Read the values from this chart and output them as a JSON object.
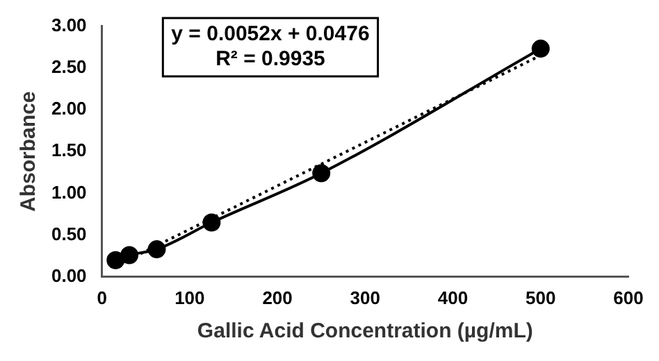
{
  "chart_data": {
    "type": "scatter",
    "xlabel": "Gallic Acid Concentration (µg/mL)",
    "ylabel": "Absorbance",
    "xlim": [
      0,
      600
    ],
    "xticks": [
      0,
      100,
      200,
      300,
      400,
      500,
      600
    ],
    "ylim": [
      0,
      3
    ],
    "yticks": [
      {
        "value": 0,
        "label": "0.00"
      },
      {
        "value": 0.5,
        "label": "0.50"
      },
      {
        "value": 1,
        "label": "1.00"
      },
      {
        "value": 1.5,
        "label": "1.50"
      },
      {
        "value": 2,
        "label": "2.00"
      },
      {
        "value": 2.5,
        "label": "2.50"
      },
      {
        "value": 3,
        "label": "3.00"
      }
    ],
    "grid": false,
    "legend": false,
    "series": [
      {
        "type": "line",
        "color": "#000000",
        "marker": "circle",
        "line_style": "solid",
        "x": [
          15.6,
          31.25,
          62.5,
          125,
          250,
          500
        ],
        "values": [
          0.2,
          0.26,
          0.33,
          0.65,
          1.24,
          2.73
        ]
      },
      {
        "type": "line",
        "color": "#000000",
        "marker": "none",
        "line_style": "dotted",
        "x": [
          15.6,
          500
        ],
        "values": [
          0.13,
          2.65
        ]
      }
    ],
    "annotations": [
      "y = 0.0052x + 0.0476",
      "R² = 0.9935"
    ]
  }
}
